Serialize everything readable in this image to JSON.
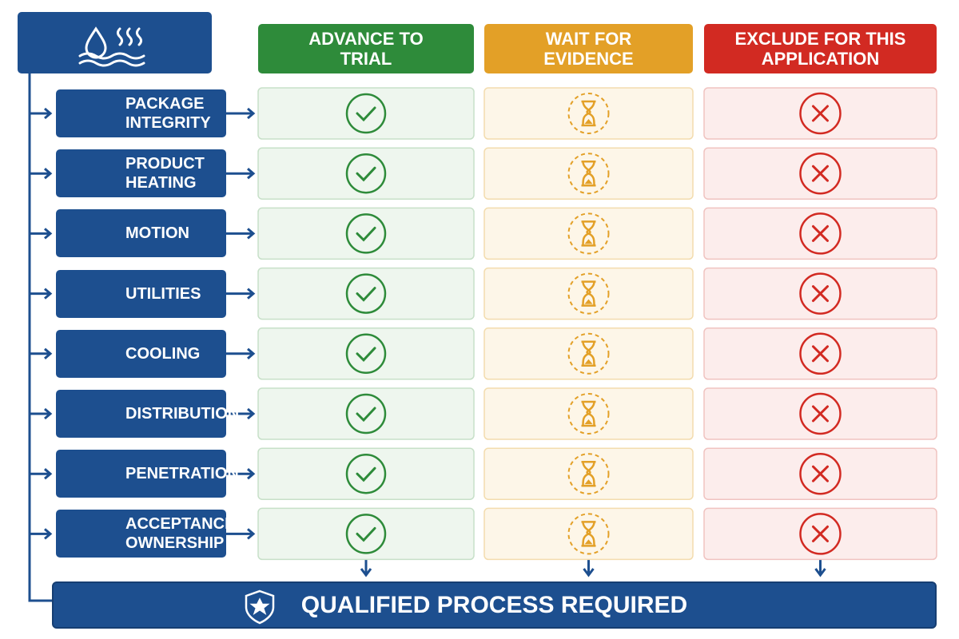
{
  "columns": [
    {
      "label": "ADVANCE TO TRIAL"
    },
    {
      "label": "WAIT FOR EVIDENCE"
    },
    {
      "label": "EXCLUDE FOR THIS APPLICATION"
    }
  ],
  "rows": [
    {
      "label": "PACKAGE INTEGRITY"
    },
    {
      "label": "PRODUCT HEATING"
    },
    {
      "label": "MOTION"
    },
    {
      "label": "UTILITIES"
    },
    {
      "label": "COOLING"
    },
    {
      "label": "DISTRIBUTION"
    },
    {
      "label": "PENETRATION"
    },
    {
      "label": "ACCEPTANCE OWNERSHIP"
    }
  ],
  "footer": {
    "label": "QUALIFIED PROCESS REQUIRED"
  }
}
